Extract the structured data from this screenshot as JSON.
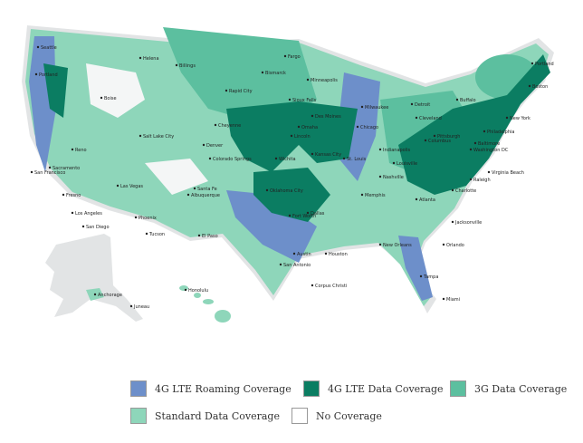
{
  "map": {
    "cities": [
      "Seattle",
      "Portland",
      "Boise",
      "Helena",
      "Billings",
      "Salt Lake City",
      "Reno",
      "Sacramento",
      "San Francisco",
      "Fresno",
      "Los Angeles",
      "San Diego",
      "Las Vegas",
      "Phoenix",
      "Tucson",
      "Albuquerque",
      "Santa Fe",
      "El Paso",
      "Denver",
      "Colorado Springs",
      "Cheyenne",
      "Rapid City",
      "Bismarck",
      "Fargo",
      "Sioux Falls",
      "Omaha",
      "Lincoln",
      "Des Moines",
      "Minneapolis",
      "Kansas City",
      "Wichita",
      "Oklahoma City",
      "Dallas",
      "Fort Worth",
      "Austin",
      "San Antonio",
      "Houston",
      "Corpus Christi",
      "New Orleans",
      "Memphis",
      "Nashville",
      "Atlanta",
      "Jacksonville",
      "Orlando",
      "Tampa",
      "Miami",
      "Charlotte",
      "Raleigh",
      "Virginia Beach",
      "Washington DC",
      "Baltimore",
      "Philadelphia",
      "New York",
      "Boston",
      "Portland",
      "Buffalo",
      "Pittsburgh",
      "Cleveland",
      "Detroit",
      "Chicago",
      "Milwaukee",
      "Indianapolis",
      "Columbus",
      "Louisville",
      "St. Louis",
      "Anchorage",
      "Juneau",
      "Honolulu"
    ],
    "legend": [
      {
        "label": "4G LTE Roaming Coverage",
        "color": "#6d8fca"
      },
      {
        "label": "4G LTE Data Coverage",
        "color": "#0b7d62"
      },
      {
        "label": "3G Data Coverage",
        "color": "#5cbf9f"
      },
      {
        "label": "Standard Data Coverage",
        "color": "#8ed6ba"
      },
      {
        "label": "No Coverage",
        "color": "#ffffff"
      }
    ]
  }
}
